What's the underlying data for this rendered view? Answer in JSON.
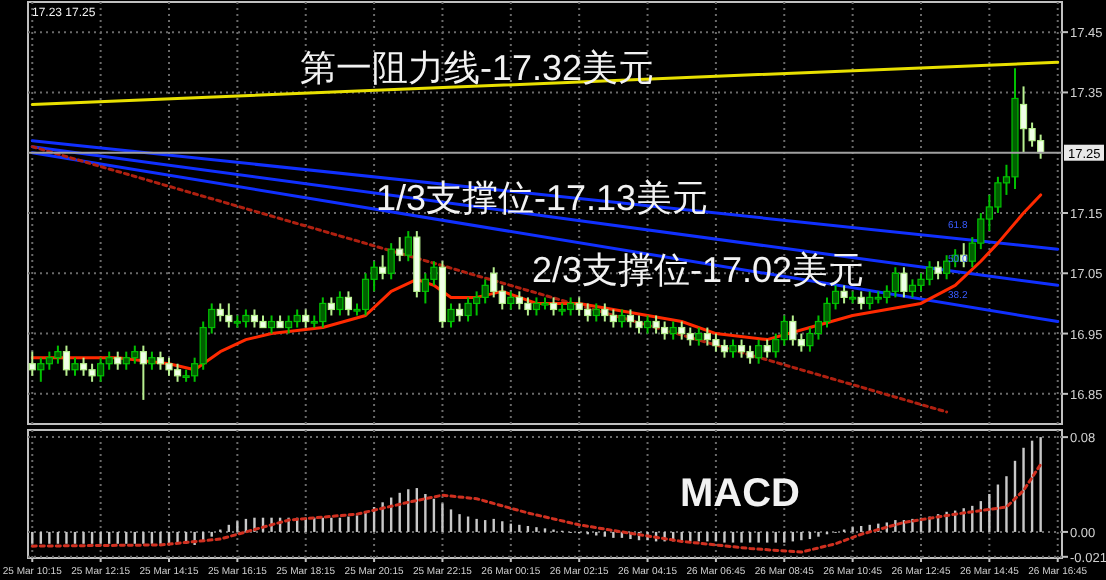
{
  "chart_data": [
    {
      "type": "candlestick",
      "tick_labels": "y",
      "grid": true,
      "categories": [
        null,
        null,
        null,
        null,
        null,
        null,
        null,
        null,
        null,
        null,
        null,
        null,
        null,
        null,
        null,
        null,
        null,
        null,
        null,
        null,
        null,
        null,
        null,
        null,
        null,
        null,
        null,
        null,
        null,
        null,
        null,
        null,
        null,
        null,
        null,
        null,
        null,
        null,
        null,
        null,
        null,
        null,
        null,
        null,
        null,
        null,
        null,
        null,
        null,
        null,
        null,
        null,
        null,
        null,
        null,
        null,
        null,
        null,
        null,
        null,
        null,
        null,
        null,
        null,
        null,
        null,
        null,
        null,
        null,
        null,
        null,
        null,
        null,
        null,
        null,
        null,
        null,
        null,
        null,
        null,
        null,
        null,
        null,
        null,
        null,
        null,
        null,
        null,
        null,
        null,
        null,
        null,
        null,
        null,
        null,
        null,
        null,
        null,
        null,
        null,
        null,
        null,
        null,
        null,
        null,
        null,
        null,
        null,
        null,
        null,
        null,
        null,
        null,
        null,
        null,
        null,
        null,
        null,
        null,
        null,
        null
      ],
      "ohlc": [
        [
          16.9,
          16.92,
          16.88,
          16.89
        ],
        [
          16.89,
          16.91,
          16.87,
          16.9
        ],
        [
          16.9,
          16.92,
          16.89,
          16.91
        ],
        [
          16.91,
          16.93,
          16.9,
          16.92
        ],
        [
          16.92,
          16.93,
          16.88,
          16.89
        ],
        [
          16.89,
          16.91,
          16.88,
          16.9
        ],
        [
          16.9,
          16.91,
          16.88,
          16.89
        ],
        [
          16.89,
          16.9,
          16.87,
          16.88
        ],
        [
          16.88,
          16.91,
          16.87,
          16.9
        ],
        [
          16.9,
          16.92,
          16.89,
          16.91
        ],
        [
          16.91,
          16.92,
          16.89,
          16.9
        ],
        [
          16.9,
          16.92,
          16.89,
          16.91
        ],
        [
          16.91,
          16.93,
          16.9,
          16.92
        ],
        [
          16.92,
          16.93,
          16.84,
          16.9
        ],
        [
          16.9,
          16.92,
          16.89,
          16.91
        ],
        [
          16.91,
          16.92,
          16.89,
          16.9
        ],
        [
          16.9,
          16.91,
          16.88,
          16.89
        ],
        [
          16.89,
          16.9,
          16.87,
          16.88
        ],
        [
          16.88,
          16.89,
          16.87,
          16.88
        ],
        [
          16.88,
          16.91,
          16.87,
          16.9
        ],
        [
          16.9,
          16.97,
          16.89,
          16.96
        ],
        [
          16.96,
          17.0,
          16.95,
          16.99
        ],
        [
          16.99,
          17.0,
          16.97,
          16.98
        ],
        [
          16.98,
          17.0,
          16.96,
          16.97
        ],
        [
          16.97,
          16.98,
          16.96,
          16.97
        ],
        [
          16.97,
          16.99,
          16.96,
          16.98
        ],
        [
          16.98,
          16.99,
          16.96,
          16.97
        ],
        [
          16.97,
          16.98,
          16.96,
          16.96
        ],
        [
          16.96,
          16.98,
          16.95,
          16.97
        ],
        [
          16.97,
          16.98,
          16.96,
          16.96
        ],
        [
          16.96,
          16.98,
          16.95,
          16.97
        ],
        [
          16.97,
          16.99,
          16.96,
          16.98
        ],
        [
          16.98,
          16.99,
          16.96,
          16.97
        ],
        [
          16.97,
          16.98,
          16.96,
          16.97
        ],
        [
          16.97,
          17.01,
          16.96,
          17.0
        ],
        [
          17.0,
          17.01,
          16.98,
          16.99
        ],
        [
          16.99,
          17.02,
          16.98,
          17.01
        ],
        [
          17.01,
          17.02,
          16.98,
          16.99
        ],
        [
          16.99,
          17.0,
          16.98,
          16.99
        ],
        [
          16.99,
          17.05,
          16.98,
          17.04
        ],
        [
          17.04,
          17.07,
          17.02,
          17.06
        ],
        [
          17.06,
          17.08,
          17.04,
          17.05
        ],
        [
          17.05,
          17.1,
          17.04,
          17.09
        ],
        [
          17.09,
          17.11,
          17.07,
          17.08
        ],
        [
          17.08,
          17.12,
          17.07,
          17.11
        ],
        [
          17.11,
          17.12,
          17.01,
          17.02
        ],
        [
          17.02,
          17.05,
          17.0,
          17.04
        ],
        [
          17.04,
          17.07,
          17.03,
          17.06
        ],
        [
          17.06,
          17.07,
          16.96,
          16.97
        ],
        [
          16.97,
          17.0,
          16.96,
          16.99
        ],
        [
          16.99,
          17.0,
          16.97,
          16.98
        ],
        [
          16.98,
          17.01,
          16.97,
          17.0
        ],
        [
          17.0,
          17.02,
          16.98,
          17.01
        ],
        [
          17.01,
          17.04,
          17.0,
          17.03
        ],
        [
          17.05,
          17.06,
          17.01,
          17.02
        ],
        [
          17.02,
          17.03,
          16.99,
          17.0
        ],
        [
          17.0,
          17.02,
          16.99,
          17.01
        ],
        [
          17.01,
          17.02,
          16.99,
          17.0
        ],
        [
          17.0,
          17.01,
          16.98,
          16.99
        ],
        [
          16.99,
          17.01,
          16.98,
          17.0
        ],
        [
          17.0,
          17.01,
          16.99,
          17.0
        ],
        [
          17.0,
          17.01,
          16.98,
          16.99
        ],
        [
          16.99,
          17.0,
          16.98,
          16.99
        ],
        [
          16.99,
          17.01,
          16.98,
          17.0
        ],
        [
          17.0,
          17.01,
          16.98,
          16.99
        ],
        [
          16.99,
          17.0,
          16.97,
          16.98
        ],
        [
          16.98,
          17.0,
          16.97,
          16.99
        ],
        [
          16.99,
          17.0,
          16.97,
          16.98
        ],
        [
          16.98,
          16.99,
          16.96,
          16.97
        ],
        [
          16.97,
          16.99,
          16.96,
          16.98
        ],
        [
          16.98,
          16.99,
          16.96,
          16.97
        ],
        [
          16.97,
          16.98,
          16.95,
          16.96
        ],
        [
          16.96,
          16.98,
          16.95,
          16.97
        ],
        [
          16.97,
          16.98,
          16.95,
          16.96
        ],
        [
          16.96,
          16.97,
          16.94,
          16.95
        ],
        [
          16.95,
          16.97,
          16.94,
          16.96
        ],
        [
          16.96,
          16.97,
          16.94,
          16.95
        ],
        [
          16.95,
          16.96,
          16.93,
          16.94
        ],
        [
          16.94,
          16.96,
          16.93,
          16.95
        ],
        [
          16.95,
          16.96,
          16.93,
          16.94
        ],
        [
          16.94,
          16.95,
          16.92,
          16.93
        ],
        [
          16.93,
          16.94,
          16.91,
          16.92
        ],
        [
          16.92,
          16.94,
          16.91,
          16.93
        ],
        [
          16.93,
          16.94,
          16.91,
          16.92
        ],
        [
          16.92,
          16.93,
          16.9,
          16.91
        ],
        [
          16.91,
          16.94,
          16.9,
          16.93
        ],
        [
          16.93,
          16.94,
          16.91,
          16.92
        ],
        [
          16.92,
          16.95,
          16.91,
          16.94
        ],
        [
          16.94,
          16.98,
          16.93,
          16.97
        ],
        [
          16.97,
          16.98,
          16.93,
          16.94
        ],
        [
          16.94,
          16.95,
          16.92,
          16.93
        ],
        [
          16.93,
          16.96,
          16.92,
          16.95
        ],
        [
          16.95,
          16.98,
          16.94,
          16.97
        ],
        [
          16.97,
          17.01,
          16.96,
          17.0
        ],
        [
          17.0,
          17.03,
          16.99,
          17.02
        ],
        [
          17.02,
          17.03,
          17.0,
          17.01
        ],
        [
          17.01,
          17.02,
          17.0,
          17.01
        ],
        [
          17.01,
          17.02,
          16.99,
          17.0
        ],
        [
          17.0,
          17.02,
          16.99,
          17.01
        ],
        [
          17.01,
          17.02,
          17.0,
          17.01
        ],
        [
          17.01,
          17.03,
          17.0,
          17.02
        ],
        [
          17.02,
          17.06,
          17.01,
          17.05
        ],
        [
          17.05,
          17.06,
          17.01,
          17.02
        ],
        [
          17.02,
          17.04,
          17.01,
          17.03
        ],
        [
          17.03,
          17.05,
          17.02,
          17.04
        ],
        [
          17.04,
          17.07,
          17.03,
          17.06
        ],
        [
          17.06,
          17.07,
          17.04,
          17.05
        ],
        [
          17.05,
          17.08,
          17.04,
          17.07
        ],
        [
          17.07,
          17.09,
          17.06,
          17.08
        ],
        [
          17.08,
          17.1,
          17.06,
          17.07
        ],
        [
          17.07,
          17.11,
          17.06,
          17.1
        ],
        [
          17.1,
          17.15,
          17.09,
          17.14
        ],
        [
          17.14,
          17.18,
          17.12,
          17.16
        ],
        [
          17.16,
          17.21,
          17.15,
          17.2
        ],
        [
          17.2,
          17.23,
          17.18,
          17.21
        ],
        [
          17.21,
          17.39,
          17.19,
          17.34
        ],
        [
          17.33,
          17.36,
          17.25,
          17.29
        ],
        [
          17.29,
          17.3,
          17.26,
          17.27
        ],
        [
          17.27,
          17.28,
          17.24,
          17.25
        ],
        null,
        null
      ],
      "series": [
        {
          "type": "line",
          "color": "#e8e000",
          "values": [
            17.33,
            null,
            null,
            null,
            null,
            null,
            null,
            null,
            null,
            null,
            null,
            null,
            null,
            null,
            null,
            null,
            null,
            null,
            null,
            null,
            null,
            null,
            null,
            null,
            null,
            null,
            null,
            null,
            null,
            null,
            null,
            null,
            null,
            null,
            null,
            null,
            null,
            null,
            null,
            null,
            null,
            null,
            null,
            null,
            null,
            null,
            null,
            null,
            null,
            null,
            null,
            null,
            null,
            null,
            null,
            null,
            null,
            null,
            null,
            null,
            null,
            null,
            null,
            null,
            null,
            null,
            null,
            null,
            null,
            null,
            null,
            null,
            null,
            null,
            null,
            null,
            null,
            null,
            null,
            null,
            null,
            null,
            null,
            null,
            null,
            null,
            null,
            null,
            null,
            null,
            null,
            null,
            null,
            null,
            null,
            null,
            null,
            null,
            null,
            null,
            null,
            null,
            null,
            null,
            null,
            null,
            null,
            null,
            null,
            null,
            null,
            null,
            null,
            null,
            null,
            null,
            null,
            null,
            null,
            null,
            17.4
          ]
        },
        {
          "type": "line",
          "color": "#1030ff",
          "values": [
            17.27,
            null,
            null,
            null,
            null,
            null,
            null,
            null,
            null,
            null,
            null,
            null,
            null,
            null,
            null,
            null,
            null,
            null,
            null,
            null,
            null,
            null,
            null,
            null,
            null,
            null,
            null,
            null,
            null,
            null,
            null,
            null,
            null,
            null,
            null,
            null,
            null,
            null,
            null,
            null,
            null,
            null,
            null,
            null,
            null,
            null,
            null,
            null,
            null,
            null,
            null,
            null,
            null,
            null,
            null,
            null,
            null,
            null,
            null,
            null,
            null,
            null,
            null,
            null,
            null,
            null,
            null,
            null,
            null,
            null,
            null,
            null,
            null,
            null,
            null,
            null,
            null,
            null,
            null,
            null,
            null,
            null,
            null,
            null,
            null,
            null,
            null,
            null,
            null,
            null,
            null,
            null,
            null,
            null,
            null,
            null,
            null,
            null,
            null,
            null,
            null,
            null,
            null,
            null,
            null,
            null,
            null,
            null,
            null,
            null,
            null,
            null,
            null,
            null,
            null,
            null,
            null,
            null,
            null,
            null,
            17.09
          ]
        },
        {
          "type": "line",
          "color": "#1030ff",
          "values": [
            17.26,
            null,
            null,
            null,
            null,
            null,
            null,
            null,
            null,
            null,
            null,
            null,
            null,
            null,
            null,
            null,
            null,
            null,
            null,
            null,
            null,
            null,
            null,
            null,
            null,
            null,
            null,
            null,
            null,
            null,
            null,
            null,
            null,
            null,
            null,
            null,
            null,
            null,
            null,
            null,
            null,
            null,
            null,
            null,
            null,
            null,
            null,
            null,
            null,
            null,
            null,
            null,
            null,
            null,
            null,
            null,
            null,
            null,
            null,
            null,
            null,
            null,
            null,
            null,
            null,
            null,
            null,
            null,
            null,
            null,
            null,
            null,
            null,
            null,
            null,
            null,
            null,
            null,
            null,
            null,
            null,
            null,
            null,
            null,
            null,
            null,
            null,
            null,
            null,
            null,
            null,
            null,
            null,
            null,
            null,
            null,
            null,
            null,
            null,
            null,
            null,
            null,
            null,
            null,
            null,
            null,
            null,
            null,
            null,
            null,
            null,
            null,
            null,
            null,
            null,
            null,
            null,
            null,
            null,
            null,
            17.03
          ]
        },
        {
          "type": "line",
          "color": "#1030ff",
          "values": [
            17.25,
            null,
            null,
            null,
            null,
            null,
            null,
            null,
            null,
            null,
            null,
            null,
            null,
            null,
            null,
            null,
            null,
            null,
            null,
            null,
            null,
            null,
            null,
            null,
            null,
            null,
            null,
            null,
            null,
            null,
            null,
            null,
            null,
            null,
            null,
            null,
            null,
            null,
            null,
            null,
            null,
            null,
            null,
            null,
            null,
            null,
            null,
            null,
            null,
            null,
            null,
            null,
            null,
            null,
            null,
            null,
            null,
            null,
            null,
            null,
            null,
            null,
            null,
            null,
            null,
            null,
            null,
            null,
            null,
            null,
            null,
            null,
            null,
            null,
            null,
            null,
            null,
            null,
            null,
            null,
            null,
            null,
            null,
            null,
            null,
            null,
            null,
            null,
            null,
            null,
            null,
            null,
            null,
            null,
            null,
            null,
            null,
            null,
            null,
            null,
            null,
            null,
            null,
            null,
            null,
            null,
            null,
            null,
            null,
            null,
            null,
            null,
            null,
            null,
            null,
            null,
            null,
            null,
            null,
            null,
            16.97
          ]
        },
        {
          "type": "line",
          "color": "#b02010",
          "line_style": "dotted",
          "values": [
            17.26,
            null,
            null,
            null,
            null,
            null,
            null,
            null,
            null,
            null,
            null,
            null,
            null,
            null,
            null,
            null,
            null,
            null,
            null,
            null,
            null,
            null,
            null,
            null,
            null,
            null,
            null,
            null,
            null,
            null,
            null,
            null,
            null,
            null,
            null,
            null,
            null,
            null,
            null,
            null,
            null,
            null,
            null,
            null,
            null,
            null,
            null,
            null,
            null,
            null,
            null,
            null,
            null,
            null,
            null,
            null,
            null,
            null,
            null,
            null,
            null,
            null,
            null,
            null,
            null,
            null,
            null,
            null,
            null,
            null,
            null,
            null,
            null,
            null,
            null,
            null,
            null,
            null,
            null,
            null,
            null,
            null,
            null,
            null,
            null,
            null,
            null,
            null,
            null,
            null,
            null,
            null,
            null,
            null,
            null,
            null,
            null,
            null,
            null,
            null,
            null,
            null,
            null,
            null,
            null,
            null,
            null,
            16.82,
            null,
            null,
            null,
            null,
            null,
            null,
            null,
            null,
            null,
            null,
            null,
            null,
            null
          ]
        },
        {
          "type": "line",
          "color": "#ff2a00",
          "values": [
            16.91,
            null,
            null,
            null,
            null,
            null,
            null,
            null,
            null,
            null,
            16.91,
            null,
            null,
            null,
            null,
            null,
            16.9,
            null,
            null,
            16.89,
            null,
            null,
            16.92,
            null,
            null,
            16.94,
            null,
            null,
            16.95,
            null,
            null,
            null,
            null,
            null,
            16.96,
            null,
            null,
            null,
            null,
            16.98,
            null,
            null,
            17.02,
            null,
            null,
            17.04,
            null,
            17.03,
            null,
            17.01,
            null,
            null,
            17.01,
            null,
            null,
            17.02,
            null,
            null,
            null,
            17.0,
            null,
            null,
            null,
            null,
            17.0,
            null,
            null,
            null,
            16.99,
            null,
            null,
            null,
            16.98,
            null,
            null,
            null,
            16.97,
            null,
            null,
            null,
            16.95,
            null,
            null,
            null,
            null,
            null,
            16.94,
            null,
            null,
            null,
            null,
            16.96,
            null,
            null,
            null,
            null,
            16.98,
            null,
            null,
            null,
            16.99,
            null,
            null,
            null,
            17.0,
            null,
            null,
            null,
            17.03,
            null,
            null,
            17.07,
            null,
            17.1,
            null,
            null,
            17.15,
            null,
            17.18,
            null,
            null
          ]
        }
      ],
      "ylim": [
        16.8,
        17.5
      ],
      "yticks": [
        17.45,
        17.35,
        17.15,
        17.05,
        16.95,
        16.85
      ],
      "ref_lines": [
        {
          "axis": "y",
          "value": 17.25,
          "label": "17.25",
          "color": "#a0a0a0"
        }
      ],
      "annotations": [
        "17.23 17.25",
        "第一阻力线-17.32美元",
        "1/3支撑位-17.13美元",
        "2/3支撑位-17.02美元",
        "61.8",
        "50.0",
        "38.2"
      ]
    },
    {
      "type": "bar",
      "grid": true,
      "categories": [
        "25 Mar 10:15",
        null,
        null,
        null,
        null,
        null,
        null,
        null,
        "25 Mar 12:15",
        null,
        null,
        null,
        null,
        null,
        null,
        null,
        "25 Mar 14:15",
        null,
        null,
        null,
        null,
        null,
        null,
        null,
        "25 Mar 16:15",
        null,
        null,
        null,
        null,
        null,
        null,
        null,
        "25 Mar 18:15",
        null,
        null,
        null,
        null,
        null,
        null,
        null,
        "25 Mar 20:15",
        null,
        null,
        null,
        null,
        null,
        null,
        null,
        "25 Mar 22:15",
        null,
        null,
        null,
        null,
        null,
        null,
        null,
        "26 Mar 00:15",
        null,
        null,
        null,
        null,
        null,
        null,
        null,
        "26 Mar 02:15",
        null,
        null,
        null,
        null,
        null,
        null,
        null,
        "26 Mar 04:15",
        null,
        null,
        null,
        null,
        null,
        null,
        null,
        "26 Mar 06:45",
        null,
        null,
        null,
        null,
        null,
        null,
        null,
        "26 Mar 08:45",
        null,
        null,
        null,
        null,
        null,
        null,
        null,
        "26 Mar 10:45",
        null,
        null,
        null,
        null,
        null,
        null,
        null,
        "26 Mar 12:45",
        null,
        null,
        null,
        null,
        null,
        null,
        null,
        "26 Mar 14:45",
        null,
        null,
        null,
        null,
        null,
        null,
        null,
        "26 Mar 16:45"
      ],
      "series": [
        {
          "color": "#c8c8c8",
          "values": [
            -0.01,
            -0.01,
            -0.01,
            -0.01,
            -0.01,
            -0.01,
            -0.01,
            -0.01,
            -0.01,
            -0.01,
            -0.01,
            -0.01,
            -0.01,
            -0.01,
            -0.01,
            -0.01,
            -0.01,
            -0.01,
            -0.01,
            -0.011,
            -0.008,
            -0.004,
            0.002,
            0.006,
            0.009,
            0.011,
            0.012,
            0.012,
            0.012,
            0.012,
            0.012,
            0.012,
            0.012,
            0.012,
            0.012,
            0.012,
            0.012,
            0.013,
            0.014,
            0.017,
            0.021,
            0.025,
            0.029,
            0.033,
            0.036,
            0.037,
            0.032,
            0.028,
            0.024,
            0.019,
            0.015,
            0.013,
            0.011,
            0.01,
            0.011,
            0.009,
            0.007,
            0.006,
            0.005,
            0.004,
            0.003,
            0.002,
            0.001,
            0,
            -0.001,
            -0.002,
            -0.003,
            -0.004,
            -0.005,
            -0.005,
            -0.006,
            -0.007,
            -0.007,
            -0.008,
            -0.008,
            -0.008,
            -0.008,
            -0.008,
            -0.008,
            -0.008,
            -0.008,
            -0.009,
            -0.009,
            -0.009,
            -0.009,
            -0.009,
            -0.009,
            -0.009,
            -0.009,
            -0.008,
            -0.007,
            -0.006,
            -0.004,
            -0.002,
            0,
            0.002,
            0.004,
            0.005,
            0.006,
            0.007,
            0.008,
            0.01,
            0.01,
            0.011,
            0.012,
            0.013,
            0.015,
            0.017,
            0.018,
            0.02,
            0.022,
            0.026,
            0.032,
            0.04,
            0.047,
            0.06,
            0.071,
            0.077,
            0.08,
            null,
            null
          ]
        },
        {
          "type": "line",
          "color": "#d03020",
          "line_style": "dotted",
          "values": [
            -0.012,
            null,
            null,
            null,
            null,
            null,
            null,
            null,
            null,
            null,
            null,
            null,
            null,
            null,
            null,
            -0.011,
            null,
            null,
            null,
            null,
            null,
            null,
            -0.006,
            null,
            null,
            null,
            null,
            null,
            null,
            null,
            0.01,
            null,
            null,
            null,
            null,
            null,
            null,
            null,
            0.015,
            null,
            null,
            null,
            null,
            null,
            0.025,
            null,
            null,
            null,
            0.031,
            null,
            null,
            null,
            0.028,
            null,
            null,
            null,
            null,
            null,
            0.016,
            null,
            null,
            null,
            null,
            null,
            0.006,
            null,
            null,
            null,
            null,
            0,
            null,
            null,
            null,
            null,
            null,
            null,
            -0.008,
            null,
            null,
            null,
            null,
            null,
            null,
            null,
            -0.014,
            null,
            null,
            null,
            null,
            null,
            -0.017,
            null,
            null,
            null,
            -0.01,
            null,
            null,
            -0.002,
            null,
            null,
            null,
            null,
            0.008,
            null,
            null,
            null,
            null,
            null,
            0.015,
            null,
            null,
            null,
            null,
            null,
            0.021,
            null,
            0.035,
            null,
            0.057,
            null,
            null
          ]
        }
      ],
      "ylim": [
        -0.022,
        0.086
      ],
      "yticks": [
        0.08,
        {
          "value": 0,
          "label": "0.00"
        },
        -0.021
      ],
      "annotations": [
        "MACD"
      ]
    }
  ]
}
